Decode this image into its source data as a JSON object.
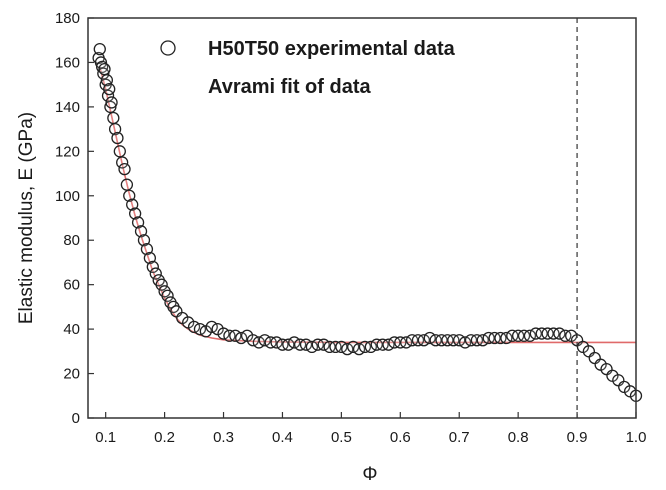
{
  "chart_data": {
    "type": "scatter",
    "xlabel": "Φ",
    "ylabel": "Elastic modulus, E (GPa)",
    "xlim": [
      0.07,
      1.0
    ],
    "ylim": [
      0,
      180
    ],
    "xticks": [
      "0.1",
      "0.2",
      "0.3",
      "0.4",
      "0.5",
      "0.6",
      "0.7",
      "0.8",
      "0.9",
      "1.0"
    ],
    "yticks": [
      "0",
      "20",
      "40",
      "60",
      "80",
      "100",
      "120",
      "140",
      "160",
      "180"
    ],
    "grid": false,
    "legend_position": "top-center",
    "reference_line": {
      "x": 0.9,
      "style": "dashed"
    },
    "series": [
      {
        "name": "H50T50 experimental data",
        "marker": "open-circle",
        "color": "#222222",
        "x": [
          0.088,
          0.09,
          0.092,
          0.094,
          0.096,
          0.098,
          0.1,
          0.102,
          0.104,
          0.106,
          0.108,
          0.11,
          0.113,
          0.116,
          0.12,
          0.124,
          0.128,
          0.132,
          0.136,
          0.14,
          0.145,
          0.15,
          0.155,
          0.16,
          0.165,
          0.17,
          0.175,
          0.18,
          0.185,
          0.19,
          0.195,
          0.2,
          0.205,
          0.21,
          0.215,
          0.22,
          0.23,
          0.24,
          0.25,
          0.26,
          0.27,
          0.28,
          0.29,
          0.3,
          0.31,
          0.32,
          0.33,
          0.34,
          0.35,
          0.36,
          0.37,
          0.38,
          0.39,
          0.4,
          0.41,
          0.42,
          0.43,
          0.44,
          0.45,
          0.46,
          0.47,
          0.48,
          0.49,
          0.5,
          0.51,
          0.52,
          0.53,
          0.54,
          0.55,
          0.56,
          0.57,
          0.58,
          0.59,
          0.6,
          0.61,
          0.62,
          0.63,
          0.64,
          0.65,
          0.66,
          0.67,
          0.68,
          0.69,
          0.7,
          0.71,
          0.72,
          0.73,
          0.74,
          0.75,
          0.76,
          0.77,
          0.78,
          0.79,
          0.8,
          0.81,
          0.82,
          0.83,
          0.84,
          0.85,
          0.86,
          0.87,
          0.88,
          0.89,
          0.9,
          0.91,
          0.92,
          0.93,
          0.94,
          0.95,
          0.96,
          0.97,
          0.98,
          0.99,
          1.0
        ],
        "y": [
          162,
          166,
          160,
          158,
          155,
          157,
          150,
          152,
          145,
          148,
          140,
          142,
          135,
          130,
          126,
          120,
          115,
          112,
          105,
          100,
          96,
          92,
          88,
          84,
          80,
          76,
          72,
          68,
          65,
          62,
          60,
          57,
          55,
          52,
          50,
          48,
          45,
          43,
          41,
          40,
          39,
          41,
          40,
          38,
          37,
          37,
          36,
          37,
          35,
          34,
          35,
          34,
          34,
          33,
          33,
          34,
          33,
          33,
          32,
          33,
          33,
          32,
          32,
          32,
          31,
          32,
          31,
          32,
          32,
          33,
          33,
          33,
          34,
          34,
          34,
          35,
          35,
          35,
          36,
          35,
          35,
          35,
          35,
          35,
          34,
          35,
          35,
          35,
          36,
          36,
          36,
          36,
          37,
          37,
          37,
          37,
          38,
          38,
          38,
          38,
          38,
          37,
          37,
          35,
          32,
          30,
          27,
          24,
          22,
          19,
          17,
          14,
          12,
          10
        ]
      },
      {
        "name": "Avrami fit of data",
        "marker": "line",
        "color": "#e06a6a",
        "x": [
          0.09,
          0.1,
          0.11,
          0.12,
          0.13,
          0.14,
          0.15,
          0.16,
          0.17,
          0.18,
          0.19,
          0.2,
          0.21,
          0.22,
          0.23,
          0.24,
          0.25,
          0.26,
          0.28,
          0.3,
          0.35,
          0.4,
          0.5,
          0.6,
          0.7,
          0.8,
          0.9,
          0.95,
          1.0
        ],
        "y": [
          158,
          148,
          136,
          124,
          112,
          101,
          91,
          82,
          74,
          66,
          60,
          54,
          49,
          45,
          42,
          40,
          38.5,
          37.3,
          36,
          35.2,
          34.5,
          34.2,
          34,
          34,
          34,
          34,
          34,
          34,
          34
        ]
      }
    ]
  }
}
